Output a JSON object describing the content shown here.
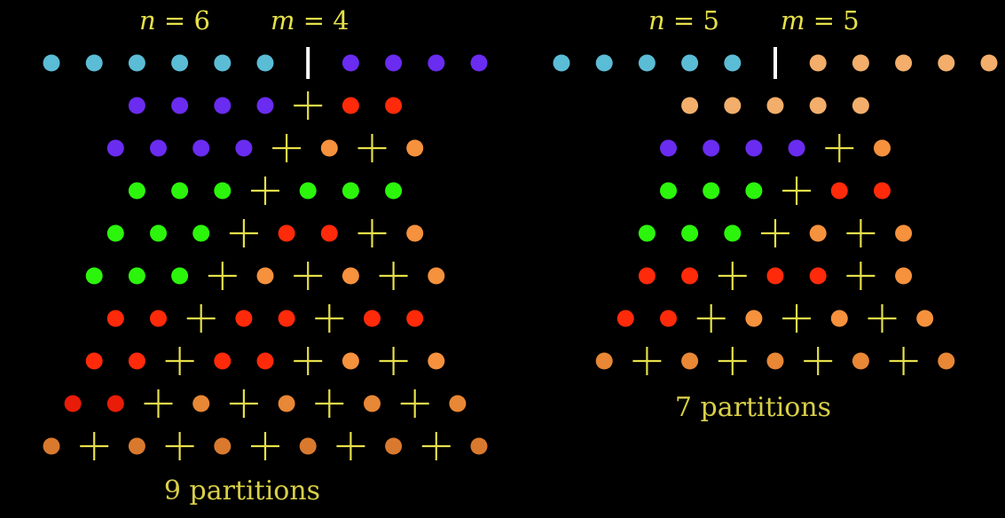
{
  "colors": {
    "background": "#000000",
    "plus": "#e6e04a",
    "divider": "#ffffff",
    "text": "#e6e04a"
  },
  "panels": [
    {
      "n_label": "n",
      "n_value": "6",
      "m_label": "m",
      "m_value": "4",
      "caption": "9 partitions",
      "rows": [
        {
          "tokens": "ssssss|pppp",
          "colors": {
            "s": "#5bbcd6",
            "p": "#6a2cf0"
          }
        },
        {
          "tokens": "pppp+rr",
          "colors": {
            "p": "#6a2cf0",
            "r": "#ff2a0a"
          }
        },
        {
          "tokens": "pppp+o+o",
          "colors": {
            "p": "#6a2cf0",
            "o": "#f6913d"
          }
        },
        {
          "tokens": "ggg+ggg",
          "colors": {
            "g": "#2cf50c"
          }
        },
        {
          "tokens": "ggg+rr+o",
          "colors": {
            "g": "#2cf50c",
            "r": "#ff2a0a",
            "o": "#f6913d"
          }
        },
        {
          "tokens": "ggg+o+o+o",
          "colors": {
            "g": "#2cf50c",
            "o": "#f6913d"
          }
        },
        {
          "tokens": "rr+rr+rr",
          "colors": {
            "r": "#ff2a0a"
          }
        },
        {
          "tokens": "rr+rr+o+o",
          "colors": {
            "r": "#ff2a0a",
            "o": "#f6913d"
          }
        },
        {
          "tokens": "rr+o+o+o+o",
          "colors": {
            "r": "#e81c08",
            "o": "#e88735"
          }
        },
        {
          "tokens": "o+o+o+o+o+o",
          "colors": {
            "o": "#d9792e"
          }
        }
      ]
    },
    {
      "n_label": "n",
      "n_value": "5",
      "m_label": "m",
      "m_value": "5",
      "caption": "7 partitions",
      "rows": [
        {
          "tokens": "sssss|yyyyy",
          "colors": {
            "s": "#5bbcd6",
            "y": "#f2ae6a"
          }
        },
        {
          "tokens": "yyyyy",
          "colors": {
            "y": "#f2ae6a"
          }
        },
        {
          "tokens": "pppp+o",
          "colors": {
            "p": "#6a2cf0",
            "o": "#f6913d"
          }
        },
        {
          "tokens": "ggg+rr",
          "colors": {
            "g": "#2cf50c",
            "r": "#ff2a0a"
          }
        },
        {
          "tokens": "ggg+o+o",
          "colors": {
            "g": "#2cf50c",
            "o": "#f6913d"
          }
        },
        {
          "tokens": "rr+rr+o",
          "colors": {
            "r": "#ff2a0a",
            "o": "#f6913d"
          }
        },
        {
          "tokens": "rr+o+o+o",
          "colors": {
            "r": "#ff2a0a",
            "o": "#f6913d"
          }
        },
        {
          "tokens": "o+o+o+o+o",
          "colors": {
            "o": "#e88735"
          }
        }
      ]
    }
  ]
}
